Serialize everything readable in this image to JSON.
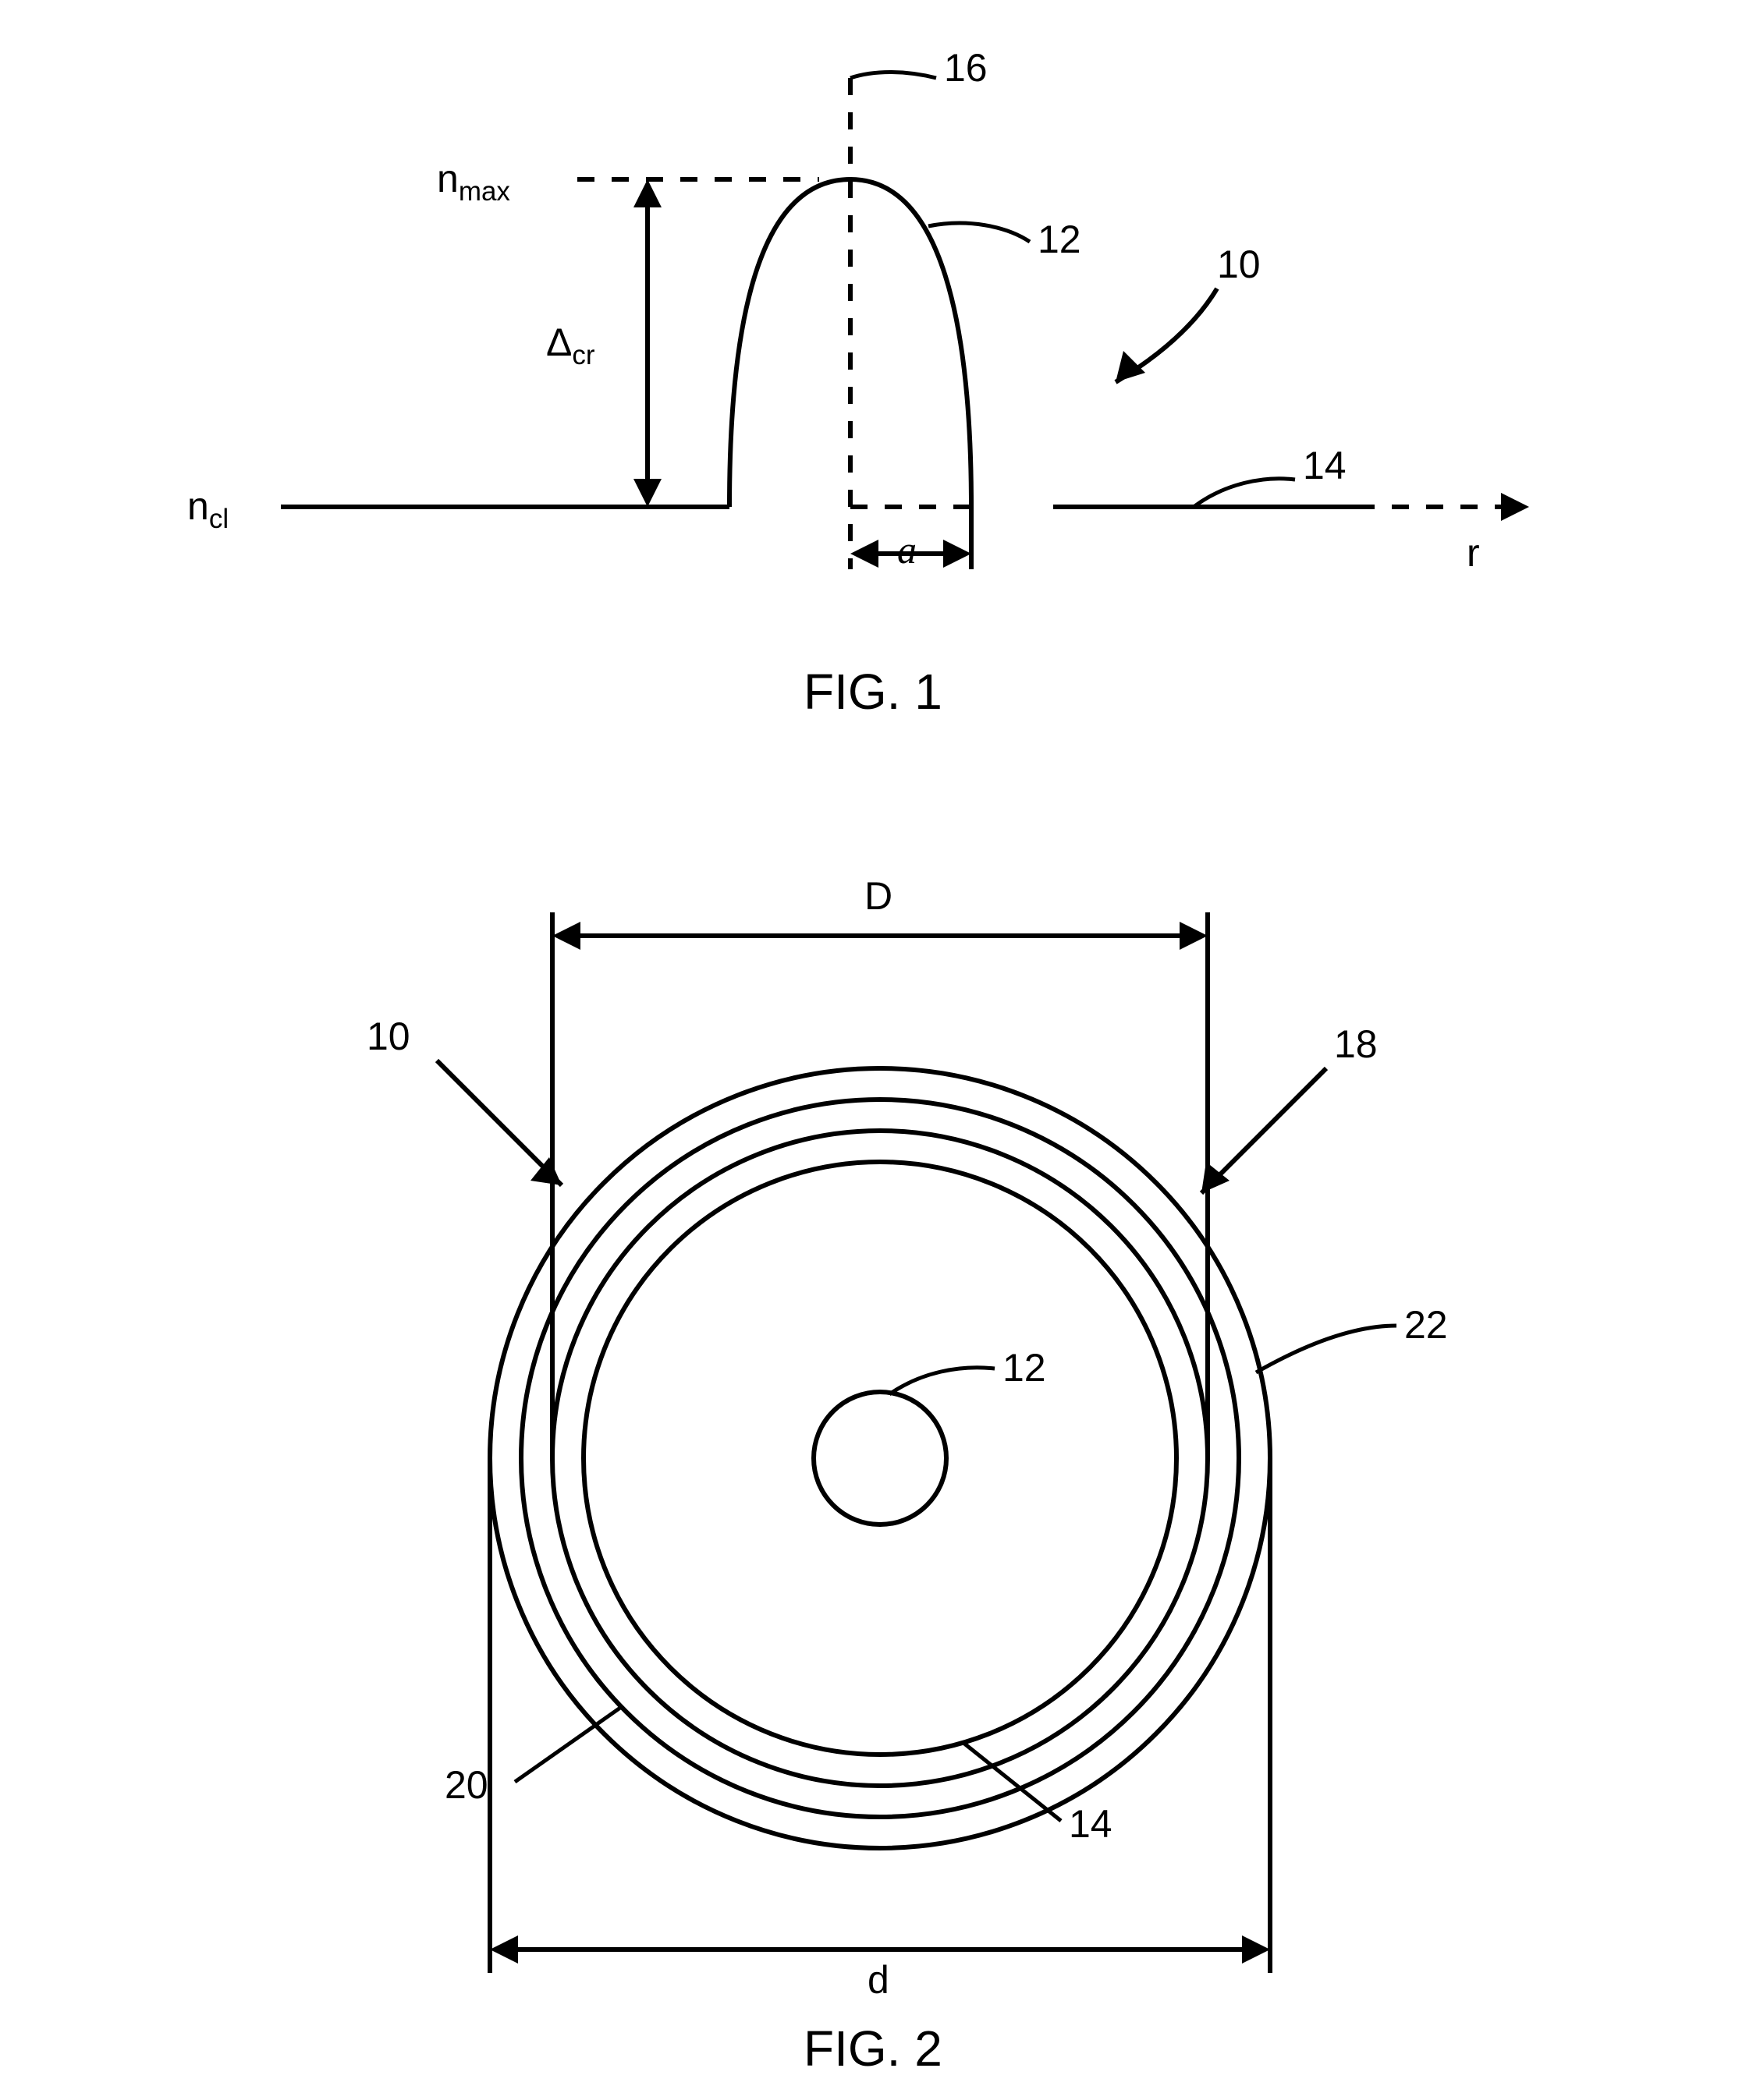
{
  "fig1": {
    "title": "FIG. 1",
    "labels": {
      "nmax_html": "n<span class='sub'>max</span>",
      "ncl_html": "n<span class='sub'>cl</span>",
      "delta_html": "&Delta;<span class='sub'>cr</span>",
      "a_html": "<span class='ital'>a</span>",
      "r": "r",
      "l16": "16",
      "l12": "12",
      "l10": "10",
      "l14": "14"
    },
    "stroke": "#000000",
    "stroke_width": 6,
    "dash": "22,22",
    "arrow_fill": "#000000"
  },
  "fig2": {
    "title": "FIG. 2",
    "labels": {
      "D": "D",
      "d": "d",
      "l10": "10",
      "l18": "18",
      "l22": "22",
      "l12": "12",
      "l14": "14",
      "l20": "20"
    },
    "stroke": "#000000",
    "stroke_width": 6,
    "arrow_fill": "#000000"
  },
  "style": {
    "bg": "#ffffff",
    "font_main": "Arial",
    "fontsize_label": 50,
    "fontsize_title": 64,
    "fontsize_axis": 50
  }
}
